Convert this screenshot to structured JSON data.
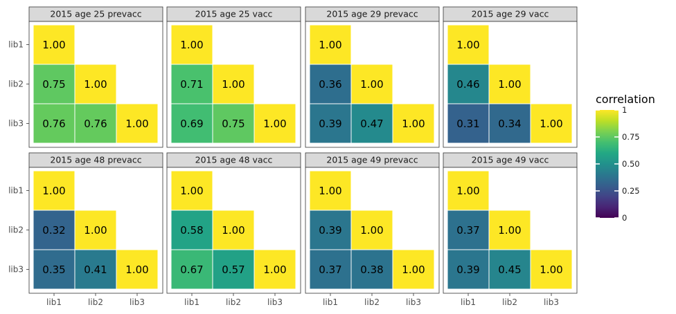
{
  "chart_data": {
    "type": "heatmap",
    "categories": [
      "lib1",
      "lib2",
      "lib3"
    ],
    "panels": [
      {
        "title": "2015 age 25 prevacc",
        "cells": [
          [
            "lib1",
            "lib1",
            1.0
          ],
          [
            "lib2",
            "lib1",
            0.75
          ],
          [
            "lib2",
            "lib2",
            1.0
          ],
          [
            "lib3",
            "lib1",
            0.76
          ],
          [
            "lib3",
            "lib2",
            0.76
          ],
          [
            "lib3",
            "lib3",
            1.0
          ]
        ]
      },
      {
        "title": "2015 age 25 vacc",
        "cells": [
          [
            "lib1",
            "lib1",
            1.0
          ],
          [
            "lib2",
            "lib1",
            0.71
          ],
          [
            "lib2",
            "lib2",
            1.0
          ],
          [
            "lib3",
            "lib1",
            0.69
          ],
          [
            "lib3",
            "lib2",
            0.75
          ],
          [
            "lib3",
            "lib3",
            1.0
          ]
        ]
      },
      {
        "title": "2015 age 29 prevacc",
        "cells": [
          [
            "lib1",
            "lib1",
            1.0
          ],
          [
            "lib2",
            "lib1",
            0.36
          ],
          [
            "lib2",
            "lib2",
            1.0
          ],
          [
            "lib3",
            "lib1",
            0.39
          ],
          [
            "lib3",
            "lib2",
            0.47
          ],
          [
            "lib3",
            "lib3",
            1.0
          ]
        ]
      },
      {
        "title": "2015 age 29 vacc",
        "cells": [
          [
            "lib1",
            "lib1",
            1.0
          ],
          [
            "lib2",
            "lib1",
            0.46
          ],
          [
            "lib2",
            "lib2",
            1.0
          ],
          [
            "lib3",
            "lib1",
            0.31
          ],
          [
            "lib3",
            "lib2",
            0.34
          ],
          [
            "lib3",
            "lib3",
            1.0
          ]
        ]
      },
      {
        "title": "2015 age 48 prevacc",
        "cells": [
          [
            "lib1",
            "lib1",
            1.0
          ],
          [
            "lib2",
            "lib1",
            0.32
          ],
          [
            "lib2",
            "lib2",
            1.0
          ],
          [
            "lib3",
            "lib1",
            0.35
          ],
          [
            "lib3",
            "lib2",
            0.41
          ],
          [
            "lib3",
            "lib3",
            1.0
          ]
        ]
      },
      {
        "title": "2015 age 48 vacc",
        "cells": [
          [
            "lib1",
            "lib1",
            1.0
          ],
          [
            "lib2",
            "lib1",
            0.58
          ],
          [
            "lib2",
            "lib2",
            1.0
          ],
          [
            "lib3",
            "lib1",
            0.67
          ],
          [
            "lib3",
            "lib2",
            0.57
          ],
          [
            "lib3",
            "lib3",
            1.0
          ]
        ]
      },
      {
        "title": "2015 age 49 prevacc",
        "cells": [
          [
            "lib1",
            "lib1",
            1.0
          ],
          [
            "lib2",
            "lib1",
            0.39
          ],
          [
            "lib2",
            "lib2",
            1.0
          ],
          [
            "lib3",
            "lib1",
            0.37
          ],
          [
            "lib3",
            "lib2",
            0.38
          ],
          [
            "lib3",
            "lib3",
            1.0
          ]
        ]
      },
      {
        "title": "2015 age 49 vacc",
        "cells": [
          [
            "lib1",
            "lib1",
            1.0
          ],
          [
            "lib2",
            "lib1",
            0.37
          ],
          [
            "lib2",
            "lib2",
            1.0
          ],
          [
            "lib3",
            "lib1",
            0.39
          ],
          [
            "lib3",
            "lib2",
            0.45
          ],
          [
            "lib3",
            "lib3",
            1.0
          ]
        ]
      }
    ],
    "legend": {
      "title": "correlation",
      "range": [
        0,
        1
      ],
      "ticks": [
        1,
        0.75,
        0.5,
        0.25,
        0
      ],
      "tick_labels": [
        "1",
        "0.75",
        "0.50",
        "0.25",
        "0"
      ],
      "colormap": "viridis",
      "placement": "right"
    }
  }
}
